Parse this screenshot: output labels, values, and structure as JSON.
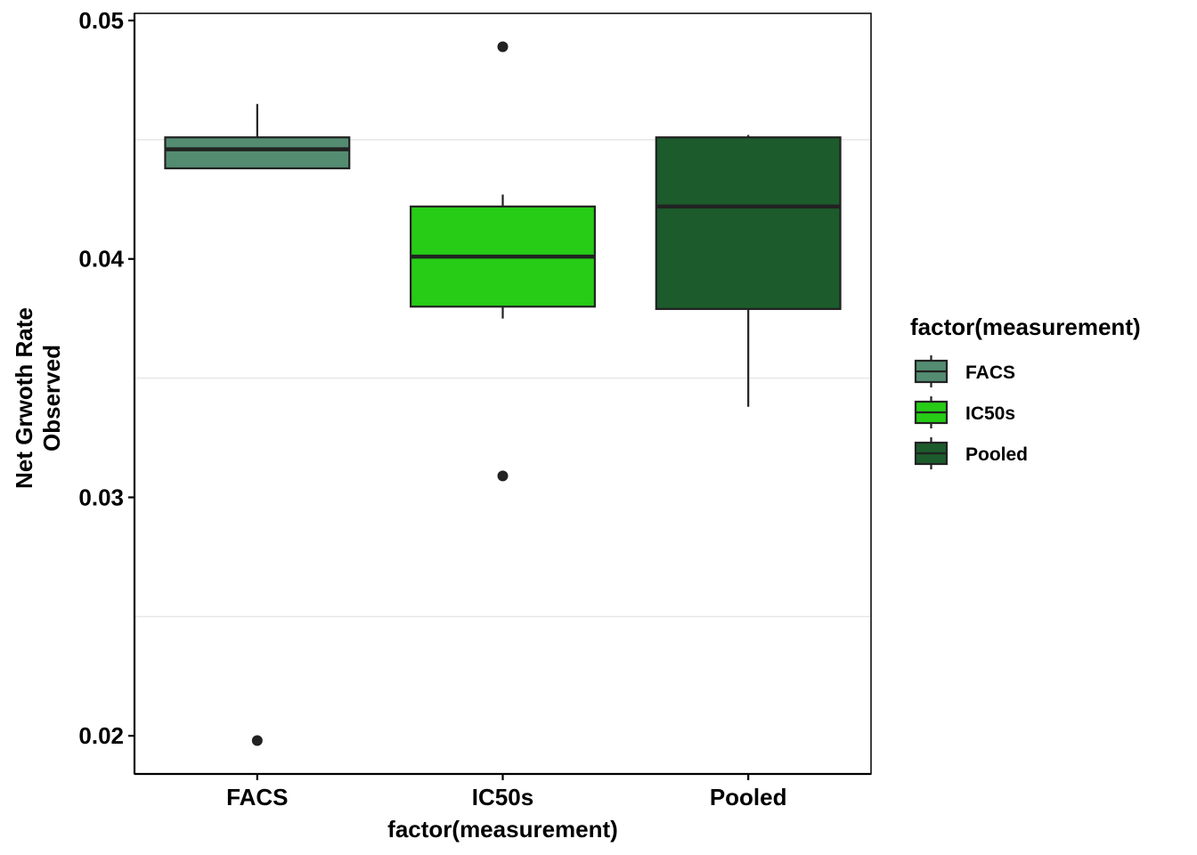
{
  "chart_data": {
    "type": "boxplot",
    "title": "",
    "xlabel": "factor(measurement)",
    "ylabel_lines": [
      "Net Grwoth Rate",
      "Observed"
    ],
    "ylim": [
      0.0184,
      0.0503
    ],
    "y_ticks": [
      0.02,
      0.03,
      0.04,
      0.05
    ],
    "y_tick_labels": [
      "0.02",
      "0.03",
      "0.04",
      "0.05"
    ],
    "y_minor_gridlines": [
      0.025,
      0.035,
      0.045
    ],
    "categories": [
      "FACS",
      "IC50s",
      "Pooled"
    ],
    "boxes": [
      {
        "name": "FACS",
        "color": "#548C72",
        "whisker_low": 0.0438,
        "q1": 0.0438,
        "median": 0.0446,
        "q3": 0.0451,
        "whisker_high": 0.0465,
        "outliers": [
          0.0198
        ]
      },
      {
        "name": "IC50s",
        "color": "#26CC16",
        "whisker_low": 0.0375,
        "q1": 0.038,
        "median": 0.0401,
        "q3": 0.0422,
        "whisker_high": 0.0427,
        "outliers": [
          0.0489,
          0.0309
        ]
      },
      {
        "name": "Pooled",
        "color": "#1C5B2C",
        "whisker_low": 0.0338,
        "q1": 0.0379,
        "median": 0.0422,
        "q3": 0.0451,
        "whisker_high": 0.0452,
        "outliers": []
      }
    ],
    "legend": {
      "title": "factor(measurement)",
      "position": "right",
      "entries": [
        "FACS",
        "IC50s",
        "Pooled"
      ]
    },
    "gridlines": "horizontal-minor"
  }
}
